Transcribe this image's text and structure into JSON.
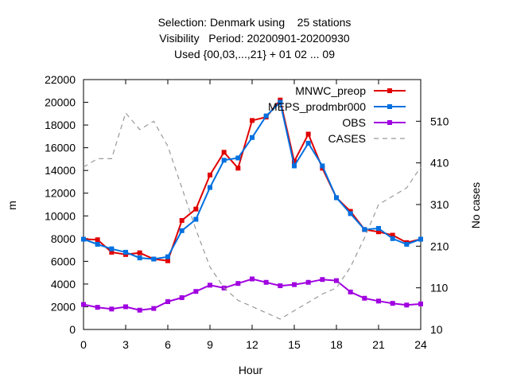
{
  "chart_data": {
    "type": "line",
    "title_lines": [
      "Selection: Denmark using    25 stations",
      "Visibility   Period: 20200901-20200930",
      "Used {00,03,...,21} + 01 02 ... 09"
    ],
    "xlabel": "Hour",
    "ylabel": "m",
    "y2label": "No cases",
    "xlim": [
      0,
      24
    ],
    "ylim": [
      0,
      22000
    ],
    "y2lim": [
      10,
      610
    ],
    "xticks": [
      0,
      3,
      6,
      9,
      12,
      15,
      18,
      21,
      24
    ],
    "yticks": [
      0,
      2000,
      4000,
      6000,
      8000,
      10000,
      12000,
      14000,
      16000,
      18000,
      20000,
      22000
    ],
    "y2ticks": [
      10,
      110,
      210,
      310,
      410,
      510
    ],
    "grid": false,
    "legend_position": "top-right",
    "series": [
      {
        "name": "MNWC_preop",
        "color": "#e00000",
        "marker": "square",
        "axis": "y",
        "x": [
          0,
          1,
          2,
          3,
          4,
          5,
          6,
          7,
          8,
          9,
          10,
          11,
          12,
          13,
          14,
          15,
          16,
          17,
          18,
          19,
          20,
          21,
          22,
          23,
          24
        ],
        "values": [
          7950,
          7900,
          6800,
          6600,
          6750,
          6200,
          6050,
          9600,
          10600,
          13600,
          15600,
          14200,
          18400,
          18700,
          20200,
          14800,
          17200,
          14200,
          11600,
          10400,
          8800,
          8600,
          8300,
          7650,
          7950
        ]
      },
      {
        "name": "MEPS_prodmbr000",
        "color": "#0070e0",
        "marker": "square",
        "axis": "y",
        "x": [
          0,
          1,
          2,
          3,
          4,
          5,
          6,
          7,
          8,
          9,
          10,
          11,
          12,
          13,
          14,
          15,
          16,
          17,
          18,
          19,
          20,
          21,
          22,
          23,
          24
        ],
        "values": [
          7950,
          7500,
          7100,
          6800,
          6300,
          6200,
          6400,
          8700,
          9700,
          12500,
          14900,
          15100,
          16900,
          18800,
          20000,
          14400,
          16400,
          14400,
          11600,
          10200,
          8800,
          8900,
          8000,
          7500,
          7950
        ]
      },
      {
        "name": "OBS",
        "color": "#a000e0",
        "marker": "square",
        "axis": "y",
        "x": [
          0,
          1,
          2,
          3,
          4,
          5,
          6,
          7,
          8,
          9,
          10,
          11,
          12,
          13,
          14,
          15,
          16,
          17,
          18,
          19,
          20,
          21,
          22,
          23,
          24
        ],
        "values": [
          2200,
          1950,
          1800,
          2000,
          1700,
          1850,
          2450,
          2800,
          3350,
          3900,
          3650,
          4050,
          4450,
          4150,
          3850,
          3950,
          4150,
          4400,
          4300,
          3300,
          2750,
          2500,
          2300,
          2150,
          2250
        ]
      },
      {
        "name": "CASES",
        "color": "#999999",
        "marker": "none",
        "dashed": true,
        "axis": "y2",
        "x": [
          0,
          1,
          2,
          3,
          4,
          5,
          6,
          7,
          8,
          9,
          10,
          11,
          12,
          13,
          14,
          15,
          16,
          17,
          18,
          19,
          20,
          21,
          22,
          23,
          24
        ],
        "values": [
          400,
          420,
          420,
          530,
          490,
          510,
          450,
          350,
          250,
          160,
          110,
          80,
          65,
          50,
          35,
          55,
          75,
          95,
          110,
          160,
          230,
          310,
          330,
          350,
          400
        ]
      }
    ]
  }
}
